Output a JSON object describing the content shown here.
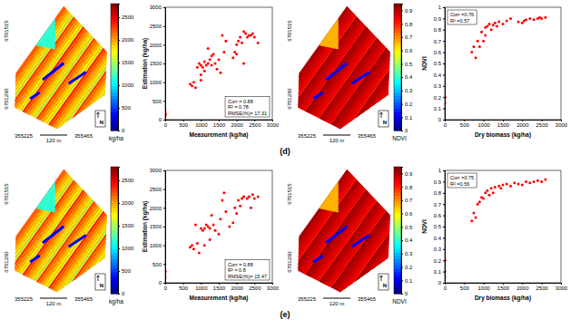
{
  "panel_labels": [
    "(d)",
    "(e)"
  ],
  "chart_data": [
    {
      "type": "map",
      "y_labels": [
        "6701515",
        "6701260"
      ],
      "x_labels": [
        "355225",
        "355465"
      ],
      "scale_bar": "120 m",
      "north": "N",
      "colorbar": {
        "label": "kg/ha",
        "range": [
          0,
          2800
        ],
        "ticks": [
          0,
          500,
          1000,
          1500,
          2000,
          2500
        ]
      }
    },
    {
      "type": "scatter",
      "xlabel": "Measurement (kg/ha)",
      "ylabel": "Estimation (kg/ha)",
      "xlim": [
        0,
        3000
      ],
      "ylim": [
        0,
        3000
      ],
      "xticks": [
        0,
        500,
        1000,
        1500,
        2000,
        2500,
        3000
      ],
      "yticks": [
        0,
        500,
        1000,
        1500,
        2000,
        2500,
        3000
      ],
      "color": "#ff0000",
      "marker": ".",
      "legend": "lower right",
      "annotations": [
        "Corr = 0.88",
        "R² = 0.78",
        "RMSE(%)= 17.31"
      ],
      "x": [
        0,
        0,
        0,
        10,
        700,
        750,
        800,
        850,
        900,
        950,
        1000,
        1000,
        1050,
        1100,
        1100,
        1150,
        1200,
        1200,
        1250,
        1300,
        1300,
        1350,
        1400,
        1450,
        1500,
        1550,
        1600,
        1650,
        1900,
        1950,
        2000,
        2000,
        2050,
        2100,
        2150,
        2200,
        2250,
        2300,
        2350,
        2400,
        2450,
        2500,
        2600,
        2200,
        1000,
        1700
      ],
      "values": [
        0,
        100,
        250,
        150,
        950,
        900,
        1000,
        850,
        1400,
        1500,
        1450,
        1200,
        1400,
        1550,
        1300,
        1450,
        1500,
        1900,
        1600,
        1450,
        1700,
        1750,
        1500,
        1350,
        1600,
        1250,
        2250,
        1800,
        1650,
        1800,
        2000,
        1750,
        2100,
        2200,
        2050,
        1500,
        2300,
        2200,
        2250,
        2250,
        2300,
        2200,
        2050,
        2350,
        1050,
        2100
      ]
    },
    {
      "type": "map",
      "y_labels": [
        "6701515",
        "6701260"
      ],
      "x_labels": [
        "355225",
        "355465"
      ],
      "scale_bar": "120 m",
      "north": "N",
      "colorbar": {
        "label": "NDVI",
        "range": [
          0,
          0.95
        ],
        "ticks": [
          0,
          0.1,
          0.2,
          0.3,
          0.4,
          0.5,
          0.6,
          0.7,
          0.8,
          0.9
        ]
      }
    },
    {
      "type": "scatter",
      "xlabel": "Dry biomass (kg/ha)",
      "ylabel": "NDVI",
      "xlim": [
        0,
        3000
      ],
      "ylim": [
        0,
        1
      ],
      "xticks": [
        0,
        500,
        1000,
        1500,
        2000,
        2500,
        3000
      ],
      "yticks": [
        0,
        0.1,
        0.2,
        0.3,
        0.4,
        0.5,
        0.6,
        0.7,
        0.8,
        0.9,
        1
      ],
      "color": "#ff0000",
      "marker": ".",
      "legend": "upper left",
      "annotations": [
        "Corr =0.76",
        "R² =0.57"
      ],
      "x": [
        0,
        0,
        10,
        700,
        750,
        800,
        850,
        900,
        950,
        1050,
        1050,
        1100,
        1150,
        1200,
        1250,
        1300,
        1350,
        1400,
        1500,
        1600,
        1700,
        1900,
        2000,
        2050,
        2100,
        2200,
        2300,
        2400,
        2450,
        2500,
        2600,
        1000
      ],
      "values": [
        0,
        0.15,
        0.2,
        0.6,
        0.65,
        0.55,
        0.7,
        0.65,
        0.78,
        0.82,
        0.75,
        0.83,
        0.85,
        0.8,
        0.84,
        0.86,
        0.83,
        0.87,
        0.85,
        0.88,
        0.9,
        0.87,
        0.86,
        0.88,
        0.89,
        0.9,
        0.89,
        0.9,
        0.91,
        0.9,
        0.91,
        0.7
      ]
    },
    {
      "type": "map",
      "y_labels": [
        "6701515",
        "6701260"
      ],
      "x_labels": [
        "355225",
        "355465"
      ],
      "scale_bar": "120 m",
      "north": "N",
      "colorbar": {
        "label": "kg/ha",
        "range": [
          0,
          2800
        ],
        "ticks": [
          0,
          500,
          1000,
          1500,
          2000,
          2500
        ]
      }
    },
    {
      "type": "scatter",
      "xlabel": "Measurement (kg/ha)",
      "ylabel": "Estimation (kg/ha)",
      "xlim": [
        0,
        3000
      ],
      "ylim": [
        0,
        3000
      ],
      "xticks": [
        0,
        500,
        1000,
        1500,
        2000,
        2500,
        3000
      ],
      "yticks": [
        0,
        500,
        1000,
        1500,
        2000,
        2500,
        3000
      ],
      "color": "#ff0000",
      "marker": ".",
      "legend": "lower right",
      "annotations": [
        "Corr = 0.88",
        "R² = 0.8",
        "RMSE(%)= 15.47"
      ],
      "x": [
        0,
        0,
        5,
        700,
        750,
        800,
        850,
        900,
        950,
        1000,
        1050,
        1100,
        1150,
        1200,
        1250,
        1300,
        1350,
        1400,
        1500,
        1550,
        1600,
        1650,
        1700,
        1800,
        1900,
        1950,
        2000,
        2050,
        2100,
        2150,
        2200,
        2300,
        2350,
        2400,
        2450,
        2500,
        2600,
        1100,
        1250
      ],
      "values": [
        0,
        150,
        300,
        950,
        1000,
        900,
        1550,
        1050,
        800,
        1450,
        1400,
        1450,
        1550,
        1500,
        1450,
        1800,
        1550,
        1400,
        1300,
        1700,
        2200,
        2400,
        1900,
        1500,
        1600,
        2000,
        1850,
        2200,
        2050,
        2250,
        2300,
        2250,
        2300,
        2000,
        2350,
        2250,
        2300,
        1000,
        1150
      ]
    },
    {
      "type": "map",
      "y_labels": [
        "6701515",
        "6701260"
      ],
      "x_labels": [
        "355225",
        "355465"
      ],
      "scale_bar": "120 m",
      "north": "N",
      "colorbar": {
        "label": "NDVI",
        "range": [
          0,
          0.95
        ],
        "ticks": [
          0,
          0.1,
          0.2,
          0.3,
          0.4,
          0.5,
          0.6,
          0.7,
          0.8,
          0.9
        ]
      }
    },
    {
      "type": "scatter",
      "xlabel": "Dry biomass (kg/ha)",
      "ylabel": "NDVI",
      "xlim": [
        0,
        3000
      ],
      "ylim": [
        0,
        1
      ],
      "xticks": [
        0,
        500,
        1000,
        1500,
        2000,
        2500,
        3000
      ],
      "yticks": [
        0,
        0.1,
        0.2,
        0.3,
        0.4,
        0.5,
        0.6,
        0.7,
        0.8,
        0.9,
        1
      ],
      "color": "#ff0000",
      "marker": ".",
      "legend": "upper left",
      "annotations": [
        "Corr =0.75",
        "R² =0.56"
      ],
      "x": [
        0,
        5,
        10,
        700,
        750,
        800,
        850,
        900,
        950,
        1050,
        1100,
        1150,
        1200,
        1250,
        1300,
        1400,
        1450,
        1500,
        1600,
        1700,
        1800,
        1900,
        2000,
        2100,
        2200,
        2300,
        2400,
        2500,
        2600,
        1000
      ],
      "values": [
        0.05,
        0.1,
        0.2,
        0.55,
        0.62,
        0.58,
        0.7,
        0.72,
        0.76,
        0.8,
        0.82,
        0.78,
        0.84,
        0.8,
        0.85,
        0.86,
        0.84,
        0.87,
        0.88,
        0.86,
        0.89,
        0.88,
        0.87,
        0.9,
        0.89,
        0.9,
        0.91,
        0.9,
        0.92,
        0.75
      ]
    }
  ]
}
